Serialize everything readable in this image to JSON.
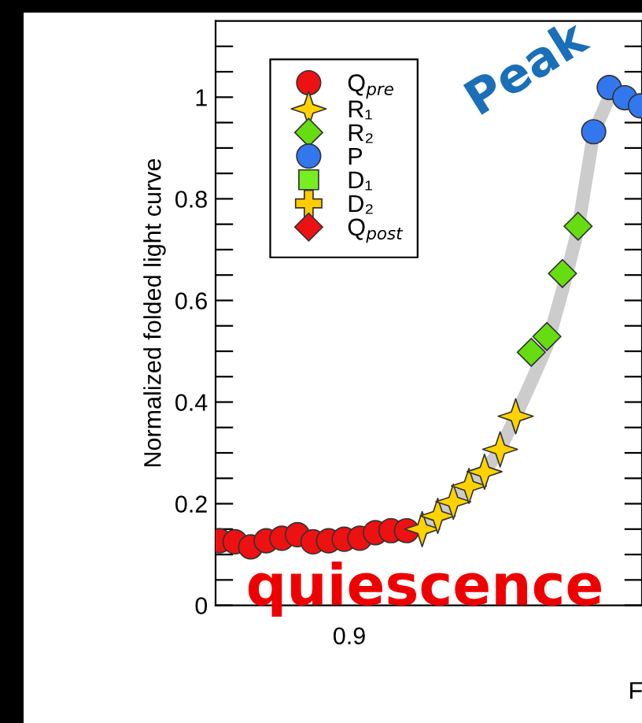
{
  "chart_data": {
    "type": "scatter",
    "xlabel": "F",
    "ylabel": "Normalized folded light curve",
    "categories": [
      null,
      null,
      null,
      null,
      null,
      null,
      null,
      null,
      null,
      null,
      null,
      null,
      null,
      null,
      null,
      null,
      null,
      null,
      null,
      null,
      null,
      null,
      null,
      null,
      null,
      null,
      null,
      null
    ],
    "ylim": [
      0,
      1.15
    ],
    "yticks": [
      {
        "value": 0,
        "label": "0"
      },
      {
        "value": 0.05,
        "label": null
      },
      {
        "value": 0.1,
        "label": null
      },
      {
        "value": 0.15,
        "label": null
      },
      {
        "value": 0.2,
        "label": "0.2"
      },
      {
        "value": 0.25,
        "label": null
      },
      {
        "value": 0.3,
        "label": null
      },
      {
        "value": 0.35,
        "label": null
      },
      {
        "value": 0.4,
        "label": "0.4"
      },
      {
        "value": 0.45,
        "label": null
      },
      {
        "value": 0.5,
        "label": null
      },
      {
        "value": 0.55,
        "label": null
      },
      {
        "value": 0.6,
        "label": "0.6"
      },
      {
        "value": 0.65,
        "label": null
      },
      {
        "value": 0.7,
        "label": null
      },
      {
        "value": 0.75,
        "label": null
      },
      {
        "value": 0.8,
        "label": "0.8"
      },
      {
        "value": 0.85,
        "label": null
      },
      {
        "value": 0.9,
        "label": null
      },
      {
        "value": 0.95,
        "label": null
      },
      {
        "value": 1,
        "label": "1"
      },
      {
        "value": 1.05,
        "label": null
      },
      {
        "value": 1.1,
        "label": null
      }
    ],
    "legend": "top left",
    "annotations": [
      "Peak",
      "quiescence",
      "0.9"
    ],
    "series": [
      {
        "type": "line",
        "color": "#cccccc",
        "values": [
          null,
          null,
          null,
          null,
          null,
          null,
          null,
          null,
          null,
          null,
          null,
          null,
          null,
          0.15,
          0.176,
          0.204,
          0.235,
          0.263,
          0.307,
          0.372,
          0.44,
          0.51,
          0.62,
          0.74,
          0.93,
          1.0,
          1.0,
          0.99
        ]
      },
      {
        "name": "Q$_{pre}$",
        "marker": "circle",
        "color": "#ee1111",
        "values": [
          0.127,
          0.125,
          0.115,
          0.127,
          0.132,
          0.139,
          0.125,
          0.127,
          0.13,
          0.132,
          0.143,
          0.147,
          0.147,
          null,
          null,
          null,
          null,
          null,
          null,
          null,
          null,
          null,
          null,
          null,
          null,
          null,
          null,
          null
        ]
      },
      {
        "name": "R₁",
        "marker": "star",
        "color": "#ffd200",
        "values": [
          null,
          null,
          null,
          null,
          null,
          null,
          null,
          null,
          null,
          null,
          null,
          null,
          null,
          0.15,
          0.176,
          0.204,
          0.235,
          0.263,
          0.307,
          0.372,
          null,
          null,
          null,
          null,
          null,
          null,
          null,
          null
        ]
      },
      {
        "name": "R₂",
        "marker": "diamond",
        "color": "#66dd11",
        "values": [
          null,
          null,
          null,
          null,
          null,
          null,
          null,
          null,
          null,
          null,
          null,
          null,
          null,
          null,
          null,
          null,
          null,
          null,
          null,
          null,
          0.498,
          0.529,
          0.653,
          0.746,
          null,
          null,
          null,
          null
        ]
      },
      {
        "name": "P",
        "marker": "circle",
        "color": "#3377ee",
        "values": [
          null,
          null,
          null,
          null,
          null,
          null,
          null,
          null,
          null,
          null,
          null,
          null,
          null,
          null,
          null,
          null,
          null,
          null,
          null,
          null,
          null,
          null,
          null,
          null,
          0.932,
          1.019,
          0.999,
          0.983
        ]
      },
      {
        "name": "D₁",
        "marker": "square",
        "color": "#77ee22",
        "values": [
          null,
          null,
          null,
          null,
          null,
          null,
          null,
          null,
          null,
          null,
          null,
          null,
          null,
          null,
          null,
          null,
          null,
          null,
          null,
          null,
          null,
          null,
          null,
          null,
          null,
          null,
          null,
          null
        ]
      },
      {
        "name": "D₂",
        "marker": "cross",
        "color": "#ffcc00",
        "values": [
          null,
          null,
          null,
          null,
          null,
          null,
          null,
          null,
          null,
          null,
          null,
          null,
          null,
          null,
          null,
          null,
          null,
          null,
          null,
          null,
          null,
          null,
          null,
          null,
          null,
          null,
          null,
          null
        ]
      },
      {
        "name": "Q$_{post}$",
        "marker": "diamond",
        "color": "#ee1111",
        "values": [
          null,
          null,
          null,
          null,
          null,
          null,
          null,
          null,
          null,
          null,
          null,
          null,
          null,
          null,
          null,
          null,
          null,
          null,
          null,
          null,
          null,
          null,
          null,
          null,
          null,
          null,
          null,
          null
        ]
      }
    ]
  }
}
